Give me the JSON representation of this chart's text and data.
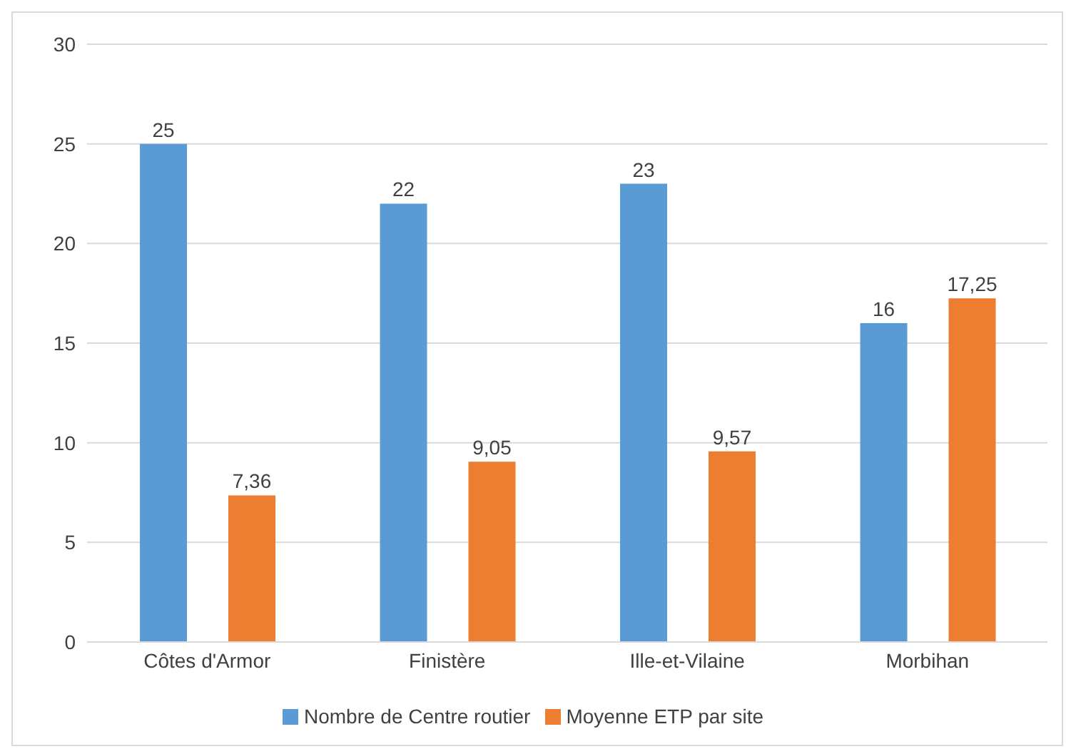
{
  "chart_data": {
    "type": "bar",
    "categories": [
      "Côtes d'Armor",
      "Finistère",
      "Ille-et-Vilaine",
      "Morbihan"
    ],
    "series": [
      {
        "name": "Nombre de Centre routier",
        "color": "#5b9bd5",
        "values": [
          25,
          22,
          23,
          16
        ]
      },
      {
        "name": "Moyenne ETP par site",
        "color": "#ed7d31",
        "values": [
          7.36,
          9.05,
          9.57,
          17.25
        ],
        "value_labels": [
          "7,36",
          "9,05",
          "9,57",
          "17,25"
        ]
      }
    ],
    "ylim": [
      0,
      30
    ],
    "yticks": [
      0,
      5,
      10,
      15,
      20,
      25,
      30
    ],
    "grid": "y",
    "legend": "bottom",
    "data_labels": true
  }
}
